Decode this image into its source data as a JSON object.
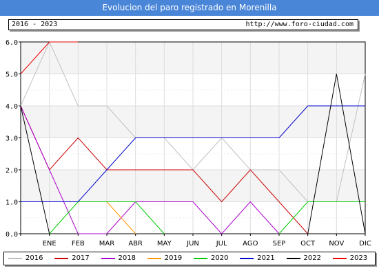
{
  "title": "Evolucion del paro registrado en Morenilla",
  "info": {
    "period": "2016 - 2023",
    "website": "http://www.foro-ciudad.com"
  },
  "chart_data": {
    "type": "line",
    "categories": [
      "",
      "ENE",
      "FEB",
      "MAR",
      "ABR",
      "MAY",
      "JUN",
      "JUL",
      "AGO",
      "SEP",
      "OCT",
      "NOV",
      "DIC"
    ],
    "ylim": [
      0,
      6
    ],
    "yticks": [
      "0.0",
      "1.0",
      "2.0",
      "3.0",
      "4.0",
      "5.0",
      "6.0"
    ],
    "grid": true,
    "legend_position": "bottom",
    "series": [
      {
        "name": "2016",
        "color": "#c0c0c0",
        "values": [
          4,
          6,
          4,
          4,
          3,
          3,
          2,
          3,
          2,
          2,
          1,
          1,
          5
        ]
      },
      {
        "name": "2017",
        "color": "#cc0000",
        "values": [
          4,
          2,
          3,
          2,
          2,
          2,
          2,
          1,
          2,
          1,
          0,
          null,
          null
        ]
      },
      {
        "name": "2018",
        "color": "#aa00cc",
        "values": [
          4,
          2,
          0,
          0,
          1,
          1,
          1,
          0,
          1,
          0,
          null,
          null,
          null
        ]
      },
      {
        "name": "2019",
        "color": "#ff9900",
        "values": [
          null,
          null,
          null,
          1,
          0,
          null,
          null,
          null,
          null,
          null,
          null,
          null,
          null
        ]
      },
      {
        "name": "2020",
        "color": "#00cc00",
        "values": [
          null,
          0,
          1,
          1,
          1,
          0,
          null,
          null,
          null,
          0,
          1,
          1,
          1
        ]
      },
      {
        "name": "2021",
        "color": "#0000cc",
        "values": [
          1,
          1,
          1,
          2,
          3,
          3,
          3,
          3,
          3,
          3,
          4,
          4,
          4
        ]
      },
      {
        "name": "2022",
        "color": "#000000",
        "values": [
          4,
          0,
          null,
          null,
          null,
          null,
          null,
          null,
          null,
          null,
          0,
          5,
          0
        ]
      },
      {
        "name": "2023",
        "color": "#ee0000",
        "values": [
          5,
          6,
          6,
          null,
          null,
          null,
          null,
          null,
          null,
          null,
          null,
          null,
          null
        ]
      }
    ]
  }
}
